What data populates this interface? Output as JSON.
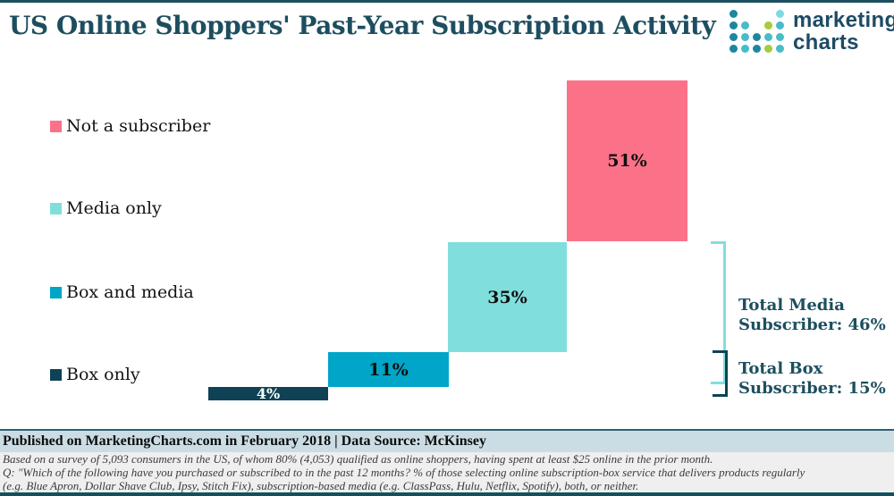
{
  "header": {
    "title": "US Online Shoppers' Past-Year Subscription Activity",
    "logo": {
      "line1": "marketing",
      "line2": "charts",
      "text_color": "#1d4b66",
      "mark_pattern": [
        [
          "#1b87a0",
          "",
          "",
          "",
          "#7fd9e2"
        ],
        [
          "#1b87a0",
          "#49bcc9",
          "",
          "#a3cd3a",
          "#49bcc9"
        ],
        [
          "#1b87a0",
          "#49bcc9",
          "#1b87a0",
          "#49bcc9",
          "#49bcc9"
        ],
        [
          "#1b87a0",
          "#49bcc9",
          "#1b87a0",
          "#a3cd3a",
          "#49bcc9"
        ]
      ]
    }
  },
  "legend": {
    "items": [
      {
        "label": "Not a subscriber",
        "color": "#fb7188"
      },
      {
        "label": "Media only",
        "color": "#80dfdd"
      },
      {
        "label": "Box and media",
        "color": "#00a5c8"
      },
      {
        "label": "Box only",
        "color": "#0e4254"
      }
    ]
  },
  "chart_data": {
    "type": "bar",
    "subtype": "waterfall-stacked-steps",
    "title": "US Online Shoppers' Past-Year Subscription Activity",
    "unit": "%",
    "categories": [
      "Box only",
      "Box and media",
      "Media only",
      "Not a subscriber"
    ],
    "values": [
      4,
      11,
      35,
      51
    ],
    "value_labels": [
      "4%",
      "11%",
      "35%",
      "51%"
    ],
    "colors": [
      "#0e4254",
      "#00a5c8",
      "#80dfdd",
      "#fb7188"
    ],
    "axes_hidden": true,
    "grid": false,
    "legend_position": "left",
    "annotations": [
      {
        "line1": "Total Media",
        "line2": "Subscriber: 46%",
        "value": 46,
        "covers": [
          "Box and media",
          "Media only"
        ],
        "bracket_color": "#80dfdd"
      },
      {
        "line1": "Total Box",
        "line2": "Subscriber: 15%",
        "value": 15,
        "covers": [
          "Box only",
          "Box and media"
        ],
        "bracket_color": "#0e4254"
      }
    ]
  },
  "footer": {
    "published": "Published on MarketingCharts.com in February 2018 | Data Source: McKinsey",
    "notes": [
      "Based on a survey of 5,093 consumers in the US, of whom 80% (4,053) qualified as online shoppers, having spent at least $25 online in the prior month.",
      "Q: \"Which of the following have you purchased or subscribed to in the past 12 months? % of those selecting online subscription-box service that delivers products regularly",
      "(e.g. Blue Apron, Dollar Shave Club, Ipsy, Stitch Fix), subscription-based media (e.g. ClassPass, Hulu, Netflix, Spotify), both, or neither."
    ]
  },
  "brand_colors": {
    "dark_teal": "#1b4f5e",
    "accent_pink": "#fb7188",
    "accent_light_teal": "#80dfdd",
    "accent_cyan": "#00a5c8",
    "footer_band": "#cbdde4"
  }
}
